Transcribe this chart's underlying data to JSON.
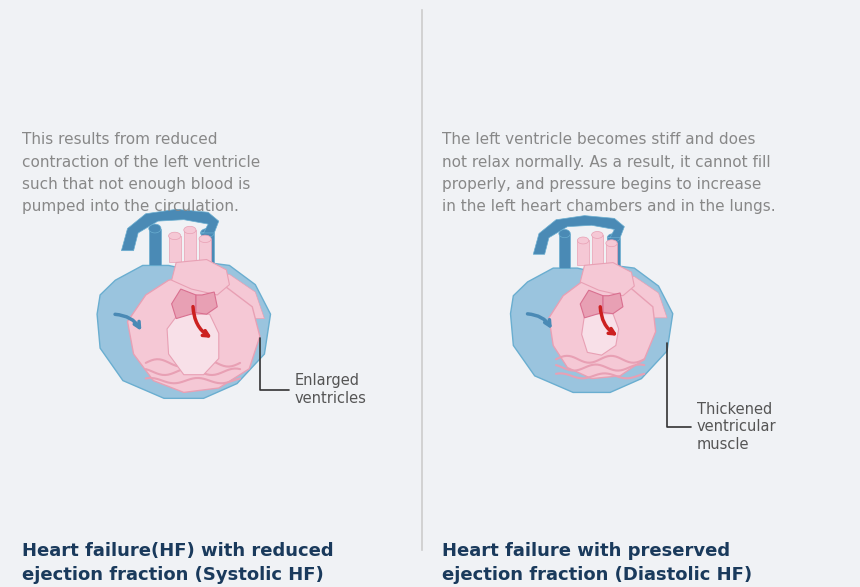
{
  "bg_color": "#f0f2f5",
  "title_color": "#1a3a5c",
  "text_color": "#888888",
  "annotation_color": "#555555",
  "title1": "Heart failure(HF) with reduced\nejection fraction (Systolic HF)",
  "title2": "Heart failure with preserved\nejection fraction (Diastolic HF)",
  "annotation1": "Enlarged\nventricles",
  "annotation2": "Thickened\nventricular\nmuscle",
  "desc1": "This results from reduced\ncontraction of the left ventricle\nsuch that not enough blood is\npumped into the circulation.",
  "desc2": "The left ventricle becomes stiff and does\nnot relax normally. As a result, it cannot fill\nproperly, and pressure begins to increase\nin the left heart chambers and in the lungs.",
  "blue_light": "#9ac4de",
  "blue_mid": "#6aaed0",
  "blue_dark": "#4a8ab5",
  "pink_light": "#f5c8d5",
  "pink_medium": "#e8a0b4",
  "pink_dark": "#d97090",
  "red_color": "#cc2020",
  "divider_color": "#cccccc",
  "white": "#ffffff"
}
